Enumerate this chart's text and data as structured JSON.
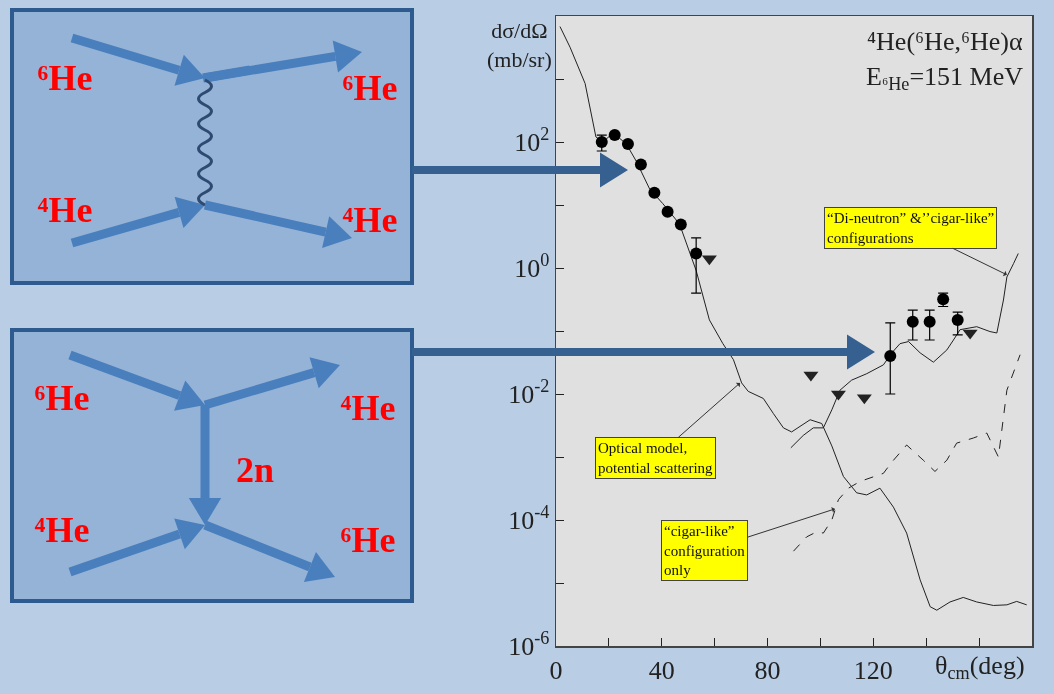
{
  "chart_data": {
    "type": "scatter",
    "title": "⁴He(⁶He,⁶He)α",
    "subtitle": "E$_{⁶He}$=151 MeV",
    "xlabel": "θ$_{cm}$(deg)",
    "ylabel": "dσ/dΩ\n(mb/sr)",
    "log": "y",
    "xlim": [
      0,
      180
    ],
    "xticks": [
      0,
      {
        "value": 20,
        "label": null
      },
      40,
      {
        "value": 60,
        "label": null
      },
      80,
      {
        "value": 100,
        "label": null
      },
      120,
      {
        "value": 140,
        "label": null
      },
      {
        "value": 160,
        "label": null
      },
      {
        "value": 180,
        "label": null
      }
    ],
    "ylim": [
      1e-06,
      10000
    ],
    "yticks": [
      {
        "value": 1e-06,
        "label": "10$^{-6}$"
      },
      {
        "value": 1e-05,
        "label": null
      },
      {
        "value": 0.0001,
        "label": "10$^{-4}$"
      },
      {
        "value": 0.001,
        "label": null
      },
      {
        "value": 0.01,
        "label": "10$^{-2}$"
      },
      {
        "value": 0.1,
        "label": null
      },
      {
        "value": 1,
        "label": "10$^{0}$"
      },
      {
        "value": 10,
        "label": null
      },
      {
        "value": 100,
        "label": "10$^{2}$"
      },
      {
        "value": 1000,
        "label": null
      },
      {
        "value": 10000,
        "label": null
      }
    ],
    "grid": false,
    "marker": "circle",
    "series": [
      {
        "type": "line",
        "color": "#222222",
        "line_style": "solid",
        "marker": "none",
        "x": [
          1.5,
          5.3,
          11,
          15.1,
          17.8,
          21.6,
          26.6,
          30.3,
          35.4,
          40.4,
          46.7,
          53,
          58,
          63.1,
          67.1,
          70.2,
          72.7,
          78.4,
          82.2,
          86,
          89.1,
          96.1,
          100.5,
          104.3,
          108.7,
          113.7,
          117.5,
          122.5,
          127.6,
          132.6,
          137.7,
          141.5,
          144,
          149,
          154,
          159.1,
          165.4,
          170.5,
          174.2,
          178
        ],
        "values": [
          6800,
          3200,
          850,
          120,
          100,
          140,
          93,
          50,
          18,
          10.5,
          5.0,
          0.91,
          0.15,
          0.063,
          0.035,
          0.015,
          0.011,
          0.0085,
          0.0049,
          0.0029,
          0.0025,
          0.0039,
          0.0034,
          0.0015,
          0.00049,
          0.00027,
          0.00025,
          0.00032,
          0.00016,
          6.2e-05,
          1.12e-05,
          4.2e-06,
          3.7e-06,
          5e-06,
          5.9e-06,
          5e-06,
          4.4e-06,
          4.5e-06,
          5.1e-06,
          4.5e-06
        ]
      },
      {
        "type": "line",
        "color": "#222222",
        "line_style": "solid",
        "marker": "none",
        "x": [
          88.8,
          93.5,
          97.3,
          101.1,
          104.3,
          107.4,
          111.8,
          117.5,
          123.8,
          127,
          130.1,
          133.3,
          137.7,
          142.7,
          147.8,
          150.3,
          152.8,
          159.1,
          164.1,
          166.7,
          169.2,
          170.5,
          173,
          174.8
        ],
        "values": [
          0.0014,
          0.0022,
          0.0029,
          0.0029,
          0.0056,
          0.0115,
          0.0166,
          0.021,
          0.029,
          0.045,
          0.063,
          0.068,
          0.045,
          0.032,
          0.05,
          0.072,
          0.105,
          0.117,
          0.098,
          0.093,
          0.31,
          0.72,
          1.17,
          1.7
        ]
      },
      {
        "type": "line",
        "color": "#222222",
        "line_style": "dashed",
        "marker": "none",
        "x": [
          89.8,
          94.8,
          98.6,
          101.1,
          104.3,
          106.8,
          110.6,
          115,
          123.8,
          127,
          132.6,
          138.9,
          143.3,
          147.8,
          151.5,
          157.8,
          162.9,
          167.3,
          170.5,
          175.5
        ],
        "values": [
          3.2e-05,
          5.4e-05,
          6.5e-05,
          6.2e-05,
          0.0001,
          0.00021,
          0.00032,
          0.00041,
          0.00055,
          0.00083,
          0.00155,
          0.00089,
          0.00059,
          0.00089,
          0.00166,
          0.002,
          0.0024,
          0.001,
          0.0115,
          0.042
        ]
      },
      {
        "type": "scatter",
        "color": "#000000",
        "x": [
          17.3,
          22.2,
          27.2,
          32.1,
          37.2,
          42.2,
          47.2,
          53,
          126.4,
          134.9,
          141.3,
          146.4,
          151.9
        ],
        "values": [
          100,
          129,
          93,
          44,
          15.7,
          7.8,
          4.9,
          1.7,
          0.04,
          0.14,
          0.14,
          0.32,
          0.15
        ],
        "errors": [
          [
            72,
            129
          ],
          null,
          null,
          null,
          null,
          null,
          null,
          [
            0.4,
            3.0
          ],
          [
            0.01,
            0.135
          ],
          [
            0.072,
            0.215
          ],
          [
            0.072,
            0.215
          ],
          [
            0.245,
            0.4
          ],
          [
            0.087,
            0.2
          ]
        ]
      },
      {
        "type": "scatter",
        "color": "#222222",
        "marker": "triangle",
        "x": [
          58,
          96.4,
          106.8,
          116.6,
          156.6
        ],
        "values": [
          1.4,
          0.02,
          0.01,
          0.0087,
          0.093
        ]
      }
    ],
    "annotations": [
      "⁶He",
      "⁶He",
      "⁴He",
      "⁴He",
      "⁶He",
      "⁴He",
      "2n",
      "⁴He",
      "⁶He",
      {
        "text": "Optical model,\npotential scattering",
        "x": 69.6,
        "y": 0.015
      },
      {
        "text": "“cigar-like”\nconfiguration\nonly",
        "x": 105.5,
        "y": 0.00015
      },
      {
        "text": "“Di-neutron” &’’cigar-like”\nconfigurations",
        "x": 170.5,
        "y": 0.78
      }
    ]
  }
}
